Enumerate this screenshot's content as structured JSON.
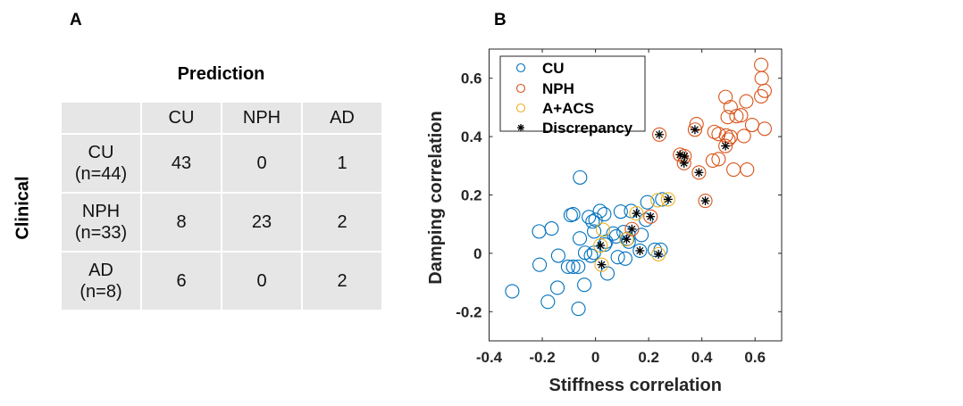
{
  "panel_a": {
    "label": "A",
    "col_title": "Prediction",
    "row_title": "Clinical",
    "columns": [
      "",
      "CU",
      "NPH",
      "AD"
    ],
    "rows": [
      {
        "label_line1": "CU",
        "label_line2": "(n=44)",
        "values": [
          "43",
          "0",
          "1"
        ]
      },
      {
        "label_line1": "NPH",
        "label_line2": "(n=33)",
        "values": [
          "8",
          "23",
          "2"
        ]
      },
      {
        "label_line1": "AD",
        "label_line2": "(n=8)",
        "values": [
          "6",
          "0",
          "2"
        ]
      }
    ]
  },
  "panel_b": {
    "label": "B"
  },
  "chart_data": {
    "type": "scatter",
    "title": "",
    "xlabel": "Stiffness correlation",
    "ylabel": "Damping correlation",
    "xlim": [
      -0.4,
      0.7
    ],
    "ylim": [
      -0.3,
      0.7
    ],
    "xticks": [
      -0.4,
      -0.2,
      0,
      0.2,
      0.4,
      0.6
    ],
    "xtick_labels": [
      "-0.4",
      "-0.2",
      "0",
      "0.2",
      "0.4",
      "0.6"
    ],
    "yticks": [
      -0.2,
      0,
      0.2,
      0.4,
      0.6
    ],
    "ytick_labels": [
      "-0.2",
      "0",
      "0.2",
      "0.4",
      "0.6"
    ],
    "grid": false,
    "legend_position": "top-left",
    "series": [
      {
        "name": "CU",
        "marker": "circle",
        "color": "#0072BD",
        "points": [
          [
            -0.058,
            0.26
          ],
          [
            -0.093,
            0.131
          ],
          [
            -0.212,
            0.075
          ],
          [
            -0.165,
            0.085
          ],
          [
            -0.059,
            0.051
          ],
          [
            -0.14,
            -0.008
          ],
          [
            -0.21,
            -0.039
          ],
          [
            -0.103,
            -0.046
          ],
          [
            -0.084,
            -0.046
          ],
          [
            -0.065,
            -0.046
          ],
          [
            -0.143,
            -0.118
          ],
          [
            -0.042,
            -0.108
          ],
          [
            -0.313,
            -0.13
          ],
          [
            -0.179,
            -0.166
          ],
          [
            -0.064,
            -0.19
          ],
          [
            0.017,
            0.145
          ],
          [
            0.033,
            0.134
          ],
          [
            -0.025,
            0.124
          ],
          [
            -0.011,
            0.109
          ],
          [
            0.095,
            0.143
          ],
          [
            0.134,
            0.145
          ],
          [
            0.195,
            0.175
          ],
          [
            0.251,
            0.185
          ],
          [
            -0.084,
            0.134
          ],
          [
            0.067,
            0.068
          ],
          [
            0.078,
            0.058
          ],
          [
            0.106,
            0.073
          ],
          [
            0.173,
            0.063
          ],
          [
            0.19,
            0.115
          ],
          [
            -0.039,
            0.002
          ],
          [
            -0.017,
            -0.008
          ],
          [
            -0.006,
            0.002
          ],
          [
            0.084,
            -0.013
          ],
          [
            0.112,
            -0.018
          ],
          [
            0.223,
            0.012
          ],
          [
            0.245,
            0.012
          ],
          [
            0.045,
            -0.069
          ],
          [
            0.167,
            0.009
          ],
          [
            0.125,
            0.04
          ],
          [
            0.04,
            0.04
          ],
          [
            -0.005,
            0.075
          ],
          [
            0.0,
            0.115
          ],
          [
            0.12,
            0.05
          ],
          [
            0.035,
            0.03
          ]
        ]
      },
      {
        "name": "NPH",
        "marker": "circle",
        "color": "#D95319",
        "points": [
          [
            0.623,
            0.646
          ],
          [
            0.625,
            0.6
          ],
          [
            0.636,
            0.557
          ],
          [
            0.623,
            0.538
          ],
          [
            0.489,
            0.536
          ],
          [
            0.508,
            0.501
          ],
          [
            0.567,
            0.521
          ],
          [
            0.497,
            0.467
          ],
          [
            0.53,
            0.47
          ],
          [
            0.547,
            0.473
          ],
          [
            0.589,
            0.44
          ],
          [
            0.636,
            0.427
          ],
          [
            0.38,
            0.443
          ],
          [
            0.374,
            0.424
          ],
          [
            0.24,
            0.407
          ],
          [
            0.447,
            0.416
          ],
          [
            0.463,
            0.409
          ],
          [
            0.491,
            0.404
          ],
          [
            0.508,
            0.399
          ],
          [
            0.558,
            0.402
          ],
          [
            0.489,
            0.368
          ],
          [
            0.318,
            0.338
          ],
          [
            0.335,
            0.333
          ],
          [
            0.333,
            0.309
          ],
          [
            0.441,
            0.318
          ],
          [
            0.463,
            0.323
          ],
          [
            0.389,
            0.277
          ],
          [
            0.519,
            0.287
          ],
          [
            0.57,
            0.287
          ],
          [
            0.413,
            0.18
          ],
          [
            0.207,
            0.126
          ],
          [
            0.137,
            0.083
          ],
          [
            0.5,
            0.39
          ]
        ]
      },
      {
        "name": "A+ACS",
        "marker": "circle",
        "color": "#EDB120",
        "points": [
          [
            0.154,
            0.137
          ],
          [
            0.234,
            0.182
          ],
          [
            0.273,
            0.185
          ],
          [
            0.028,
            0.081
          ],
          [
            0.117,
            0.048
          ],
          [
            0.019,
            0.027
          ],
          [
            0.237,
            -0.003
          ],
          [
            0.023,
            -0.039
          ]
        ]
      },
      {
        "name": "Discrepancy",
        "marker": "asterisk",
        "color": "#000000",
        "points": [
          [
            0.24,
            0.407
          ],
          [
            0.374,
            0.424
          ],
          [
            0.489,
            0.368
          ],
          [
            0.318,
            0.338
          ],
          [
            0.335,
            0.333
          ],
          [
            0.333,
            0.309
          ],
          [
            0.389,
            0.277
          ],
          [
            0.413,
            0.18
          ],
          [
            0.273,
            0.185
          ],
          [
            0.154,
            0.137
          ],
          [
            0.207,
            0.126
          ],
          [
            0.137,
            0.083
          ],
          [
            0.117,
            0.048
          ],
          [
            0.019,
            0.027
          ],
          [
            0.167,
            0.009
          ],
          [
            0.237,
            -0.003
          ],
          [
            0.023,
            -0.039
          ]
        ]
      }
    ]
  }
}
